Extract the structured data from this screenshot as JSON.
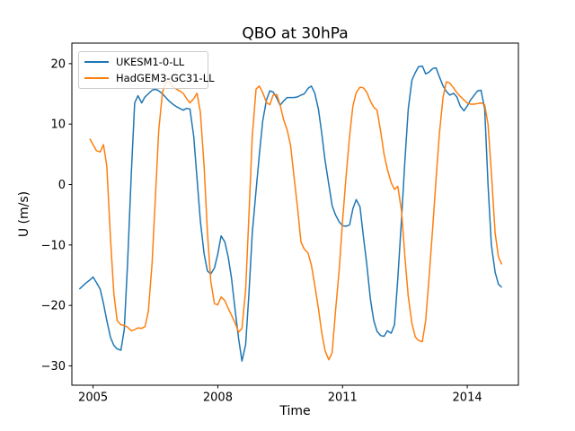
{
  "figure": {
    "background": "#ffffff"
  },
  "chart_data": {
    "type": "line",
    "title": "QBO at 30hPa",
    "xlabel": "Time",
    "ylabel": "U (m/s)",
    "xlim": [
      2004.49,
      2015.23
    ],
    "ylim": [
      -33.2,
      23.4
    ],
    "grid": false,
    "axes_color": "#000000",
    "xticks": [
      {
        "value": 2005,
        "label": "2005"
      },
      {
        "value": 2008,
        "label": "2008"
      },
      {
        "value": 2011,
        "label": "2011"
      },
      {
        "value": 2014,
        "label": "2014"
      }
    ],
    "yticks": [
      {
        "value": -30,
        "label": "−30"
      },
      {
        "value": -20,
        "label": "−20"
      },
      {
        "value": -10,
        "label": "−10"
      },
      {
        "value": 0,
        "label": "0"
      },
      {
        "value": 10,
        "label": "10"
      },
      {
        "value": 20,
        "label": "20"
      }
    ],
    "legend": {
      "position": "upper left",
      "border_color": "#cccccc",
      "entries": [
        "UKESM1-0-LL",
        "HadGEM3-GC31-LL"
      ]
    },
    "series": [
      {
        "name": "UKESM1-0-LL",
        "color": "#1f77b4",
        "points": [
          [
            2004.67,
            -17.3
          ],
          [
            2004.75,
            -16.8
          ],
          [
            2004.83,
            -16.3
          ],
          [
            2004.92,
            -15.8
          ],
          [
            2005.0,
            -15.3
          ],
          [
            2005.08,
            -16.2
          ],
          [
            2005.17,
            -17.3
          ],
          [
            2005.25,
            -19.7
          ],
          [
            2005.33,
            -22.5
          ],
          [
            2005.42,
            -25.3
          ],
          [
            2005.5,
            -26.6
          ],
          [
            2005.58,
            -27.2
          ],
          [
            2005.67,
            -27.4
          ],
          [
            2005.75,
            -24.0
          ],
          [
            2005.83,
            -13.0
          ],
          [
            2005.92,
            2.0
          ],
          [
            2006.0,
            13.5
          ],
          [
            2006.08,
            14.7
          ],
          [
            2006.17,
            13.5
          ],
          [
            2006.25,
            14.5
          ],
          [
            2006.33,
            15.0
          ],
          [
            2006.42,
            15.6
          ],
          [
            2006.5,
            15.8
          ],
          [
            2006.58,
            15.5
          ],
          [
            2006.67,
            15.0
          ],
          [
            2006.75,
            14.4
          ],
          [
            2006.83,
            13.8
          ],
          [
            2006.92,
            13.3
          ],
          [
            2007.0,
            12.9
          ],
          [
            2007.08,
            12.6
          ],
          [
            2007.17,
            12.3
          ],
          [
            2007.25,
            12.6
          ],
          [
            2007.33,
            12.5
          ],
          [
            2007.42,
            8.0
          ],
          [
            2007.5,
            1.0
          ],
          [
            2007.58,
            -6.0
          ],
          [
            2007.67,
            -11.5
          ],
          [
            2007.75,
            -14.3
          ],
          [
            2007.83,
            -14.8
          ],
          [
            2007.92,
            -13.8
          ],
          [
            2008.0,
            -11.5
          ],
          [
            2008.08,
            -8.5
          ],
          [
            2008.17,
            -9.5
          ],
          [
            2008.25,
            -12.0
          ],
          [
            2008.33,
            -15.5
          ],
          [
            2008.42,
            -21.0
          ],
          [
            2008.5,
            -25.5
          ],
          [
            2008.58,
            -29.2
          ],
          [
            2008.67,
            -26.5
          ],
          [
            2008.75,
            -18.0
          ],
          [
            2008.83,
            -8.0
          ],
          [
            2008.92,
            -1.0
          ],
          [
            2009.0,
            5.0
          ],
          [
            2009.08,
            10.5
          ],
          [
            2009.17,
            14.0
          ],
          [
            2009.25,
            15.5
          ],
          [
            2009.33,
            15.3
          ],
          [
            2009.42,
            14.3
          ],
          [
            2009.5,
            13.1
          ],
          [
            2009.58,
            13.8
          ],
          [
            2009.67,
            14.4
          ],
          [
            2009.75,
            14.4
          ],
          [
            2009.83,
            14.4
          ],
          [
            2009.92,
            14.5
          ],
          [
            2010.0,
            14.8
          ],
          [
            2010.08,
            15.0
          ],
          [
            2010.17,
            15.9
          ],
          [
            2010.25,
            16.3
          ],
          [
            2010.33,
            15.2
          ],
          [
            2010.42,
            12.5
          ],
          [
            2010.5,
            8.5
          ],
          [
            2010.58,
            4.0
          ],
          [
            2010.67,
            0.0
          ],
          [
            2010.75,
            -3.5
          ],
          [
            2010.83,
            -5.0
          ],
          [
            2010.92,
            -6.2
          ],
          [
            2011.0,
            -6.8
          ],
          [
            2011.08,
            -6.9
          ],
          [
            2011.17,
            -6.7
          ],
          [
            2011.25,
            -4.0
          ],
          [
            2011.33,
            -2.5
          ],
          [
            2011.42,
            -3.7
          ],
          [
            2011.5,
            -8.5
          ],
          [
            2011.58,
            -13.0
          ],
          [
            2011.67,
            -19.0
          ],
          [
            2011.75,
            -22.5
          ],
          [
            2011.83,
            -24.3
          ],
          [
            2011.92,
            -25.0
          ],
          [
            2012.0,
            -25.1
          ],
          [
            2012.08,
            -24.2
          ],
          [
            2012.17,
            -24.6
          ],
          [
            2012.25,
            -23.2
          ],
          [
            2012.33,
            -15.5
          ],
          [
            2012.42,
            -5.5
          ],
          [
            2012.5,
            4.0
          ],
          [
            2012.58,
            12.5
          ],
          [
            2012.67,
            17.3
          ],
          [
            2012.75,
            18.5
          ],
          [
            2012.83,
            19.5
          ],
          [
            2012.92,
            19.6
          ],
          [
            2013.0,
            18.3
          ],
          [
            2013.08,
            18.6
          ],
          [
            2013.17,
            19.2
          ],
          [
            2013.25,
            19.3
          ],
          [
            2013.33,
            17.8
          ],
          [
            2013.42,
            16.3
          ],
          [
            2013.5,
            15.4
          ],
          [
            2013.58,
            14.8
          ],
          [
            2013.67,
            15.1
          ],
          [
            2013.75,
            14.5
          ],
          [
            2013.83,
            13.0
          ],
          [
            2013.92,
            12.2
          ],
          [
            2014.0,
            13.0
          ],
          [
            2014.08,
            14.0
          ],
          [
            2014.17,
            14.8
          ],
          [
            2014.25,
            15.5
          ],
          [
            2014.33,
            15.6
          ],
          [
            2014.42,
            12.5
          ],
          [
            2014.5,
            0.0
          ],
          [
            2014.58,
            -10.0
          ],
          [
            2014.67,
            -14.5
          ],
          [
            2014.75,
            -16.5
          ],
          [
            2014.83,
            -17.0
          ]
        ]
      },
      {
        "name": "HadGEM3-GC31-LL",
        "color": "#ff7f0e",
        "points": [
          [
            2004.92,
            7.6
          ],
          [
            2005.0,
            6.6
          ],
          [
            2005.08,
            5.6
          ],
          [
            2005.17,
            5.4
          ],
          [
            2005.25,
            6.6
          ],
          [
            2005.33,
            3.0
          ],
          [
            2005.42,
            -9.0
          ],
          [
            2005.5,
            -18.0
          ],
          [
            2005.58,
            -22.5
          ],
          [
            2005.67,
            -23.2
          ],
          [
            2005.75,
            -23.3
          ],
          [
            2005.83,
            -23.6
          ],
          [
            2005.92,
            -24.2
          ],
          [
            2006.0,
            -24.0
          ],
          [
            2006.08,
            -23.7
          ],
          [
            2006.17,
            -23.8
          ],
          [
            2006.25,
            -23.5
          ],
          [
            2006.33,
            -21.0
          ],
          [
            2006.42,
            -13.0
          ],
          [
            2006.5,
            -2.0
          ],
          [
            2006.58,
            9.0
          ],
          [
            2006.67,
            15.3
          ],
          [
            2006.75,
            16.9
          ],
          [
            2006.83,
            17.0
          ],
          [
            2006.92,
            16.2
          ],
          [
            2007.0,
            15.8
          ],
          [
            2007.08,
            15.5
          ],
          [
            2007.17,
            15.1
          ],
          [
            2007.25,
            14.2
          ],
          [
            2007.33,
            13.5
          ],
          [
            2007.42,
            14.2
          ],
          [
            2007.5,
            15.1
          ],
          [
            2007.58,
            12.0
          ],
          [
            2007.67,
            3.0
          ],
          [
            2007.75,
            -8.0
          ],
          [
            2007.83,
            -16.0
          ],
          [
            2007.92,
            -19.7
          ],
          [
            2008.0,
            -19.9
          ],
          [
            2008.08,
            -18.6
          ],
          [
            2008.17,
            -19.2
          ],
          [
            2008.25,
            -20.5
          ],
          [
            2008.33,
            -21.6
          ],
          [
            2008.42,
            -23.0
          ],
          [
            2008.5,
            -24.4
          ],
          [
            2008.58,
            -23.8
          ],
          [
            2008.67,
            -17.5
          ],
          [
            2008.75,
            -5.0
          ],
          [
            2008.83,
            8.0
          ],
          [
            2008.92,
            15.8
          ],
          [
            2009.0,
            16.3
          ],
          [
            2009.08,
            15.2
          ],
          [
            2009.17,
            13.6
          ],
          [
            2009.25,
            13.2
          ],
          [
            2009.33,
            14.8
          ],
          [
            2009.42,
            14.9
          ],
          [
            2009.5,
            13.2
          ],
          [
            2009.58,
            10.8
          ],
          [
            2009.67,
            9.0
          ],
          [
            2009.75,
            6.5
          ],
          [
            2009.83,
            1.5
          ],
          [
            2009.92,
            -4.0
          ],
          [
            2010.0,
            -9.5
          ],
          [
            2010.08,
            -10.7
          ],
          [
            2010.17,
            -11.3
          ],
          [
            2010.25,
            -13.3
          ],
          [
            2010.33,
            -16.5
          ],
          [
            2010.42,
            -20.5
          ],
          [
            2010.5,
            -24.5
          ],
          [
            2010.58,
            -27.5
          ],
          [
            2010.67,
            -29.0
          ],
          [
            2010.75,
            -27.8
          ],
          [
            2010.83,
            -21.0
          ],
          [
            2010.92,
            -14.0
          ],
          [
            2011.0,
            -6.0
          ],
          [
            2011.08,
            1.0
          ],
          [
            2011.17,
            8.0
          ],
          [
            2011.25,
            13.0
          ],
          [
            2011.33,
            15.2
          ],
          [
            2011.42,
            16.1
          ],
          [
            2011.5,
            16.0
          ],
          [
            2011.58,
            15.3
          ],
          [
            2011.67,
            13.8
          ],
          [
            2011.75,
            12.8
          ],
          [
            2011.83,
            12.3
          ],
          [
            2011.92,
            8.7
          ],
          [
            2012.0,
            5.0
          ],
          [
            2012.08,
            2.5
          ],
          [
            2012.17,
            0.3
          ],
          [
            2012.25,
            -0.8
          ],
          [
            2012.33,
            -0.3
          ],
          [
            2012.42,
            -4.5
          ],
          [
            2012.5,
            -12.0
          ],
          [
            2012.58,
            -18.5
          ],
          [
            2012.67,
            -23.0
          ],
          [
            2012.75,
            -25.2
          ],
          [
            2012.83,
            -25.8
          ],
          [
            2012.92,
            -26.0
          ],
          [
            2013.0,
            -22.5
          ],
          [
            2013.08,
            -15.5
          ],
          [
            2013.17,
            -7.0
          ],
          [
            2013.25,
            1.0
          ],
          [
            2013.33,
            8.5
          ],
          [
            2013.42,
            14.5
          ],
          [
            2013.5,
            17.0
          ],
          [
            2013.58,
            16.8
          ],
          [
            2013.67,
            16.0
          ],
          [
            2013.75,
            15.2
          ],
          [
            2013.83,
            14.6
          ],
          [
            2013.92,
            14.0
          ],
          [
            2014.0,
            13.5
          ],
          [
            2014.08,
            13.3
          ],
          [
            2014.17,
            13.3
          ],
          [
            2014.25,
            13.4
          ],
          [
            2014.33,
            13.5
          ],
          [
            2014.42,
            13.2
          ],
          [
            2014.5,
            10.0
          ],
          [
            2014.58,
            2.0
          ],
          [
            2014.67,
            -8.0
          ],
          [
            2014.75,
            -12.0
          ],
          [
            2014.83,
            -13.2
          ]
        ]
      }
    ]
  }
}
